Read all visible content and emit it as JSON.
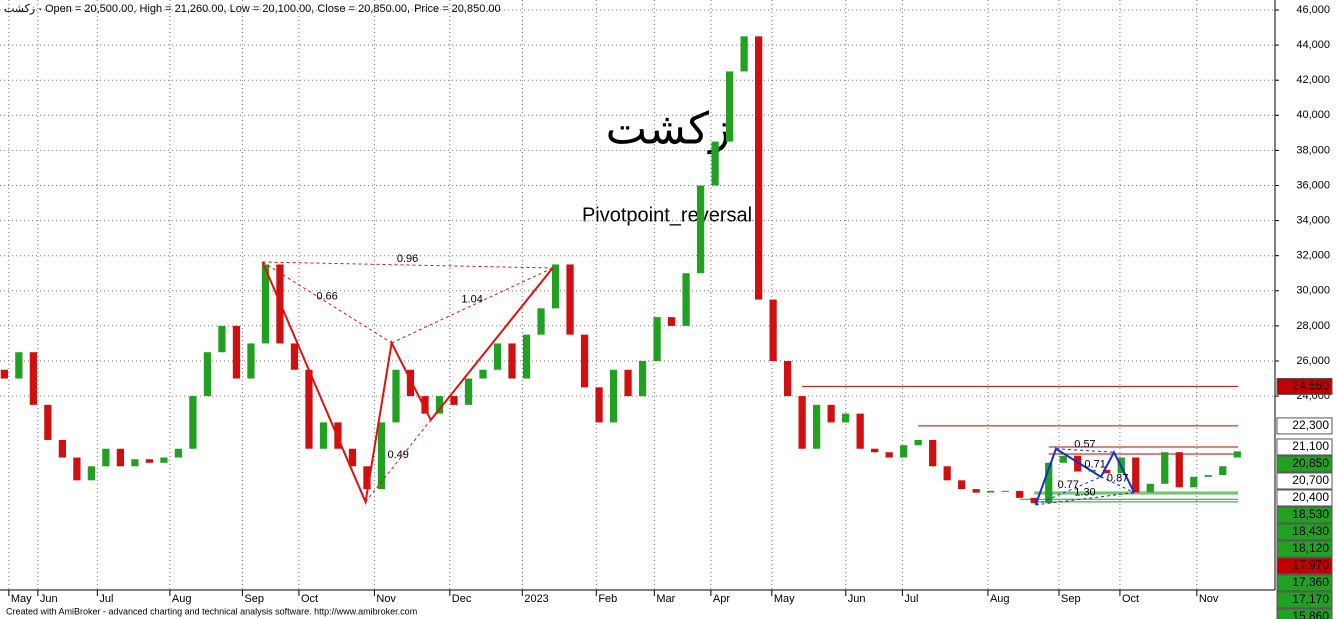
{
  "chart_data": {
    "type": "candlestick",
    "title": "زکشت - Open = 20,500.00, High = 21,260.00, Low = 20,100.00, Close = 20,850.00,",
    "price_label": "Price = 20,850.00",
    "watermark": "زکشت",
    "study_label": "Pivotpoint_reversal",
    "footer": "Created with AmiBroker - advanced charting and technical analysis software. http://www.amibroker.com",
    "xlim": [
      -0.3,
      87.6
    ],
    "xticks": [
      {
        "value": 1,
        "label": "May"
      },
      {
        "value": 3,
        "label": "Jun"
      },
      {
        "value": 7.1,
        "label": "Jul"
      },
      {
        "value": 12.1,
        "label": "Aug"
      },
      {
        "value": 17.1,
        "label": "Sep"
      },
      {
        "value": 21,
        "label": "Oct"
      },
      {
        "value": 26.2,
        "label": "Nov"
      },
      {
        "value": 31.4,
        "label": "Dec"
      },
      {
        "value": 36.4,
        "label": "2023"
      },
      {
        "value": 41.5,
        "label": "Feb"
      },
      {
        "value": 45.5,
        "label": "Mar"
      },
      {
        "value": 49.4,
        "label": "Apr"
      },
      {
        "value": 53.6,
        "label": "May"
      },
      {
        "value": 58.7,
        "label": "Jun"
      },
      {
        "value": 62.6,
        "label": "Jul"
      },
      {
        "value": 68.5,
        "label": "Aug"
      },
      {
        "value": 73.4,
        "label": "Sep"
      },
      {
        "value": 77.6,
        "label": "Oct"
      },
      {
        "value": 82.9,
        "label": "Nov"
      }
    ],
    "ylim": [
      12950,
      46570
    ],
    "yticks": [
      {
        "value": 24000,
        "label": "24,000"
      },
      {
        "value": 26000,
        "label": "26,000"
      },
      {
        "value": 28000,
        "label": "28,000"
      },
      {
        "value": 30000,
        "label": "30,000"
      },
      {
        "value": 32000,
        "label": "32,000"
      },
      {
        "value": 34000,
        "label": "34,000"
      },
      {
        "value": 36000,
        "label": "36,000"
      },
      {
        "value": 38000,
        "label": "38,000"
      },
      {
        "value": 40000,
        "label": "40,000"
      },
      {
        "value": 42000,
        "label": "42,000"
      },
      {
        "value": 44000,
        "label": "44,000"
      },
      {
        "value": 46000,
        "label": "46,000"
      }
    ],
    "up_color": "#22a022",
    "down_color": "#d01010",
    "open": [
      25500,
      25000,
      26500,
      23500,
      21500,
      20500,
      19200,
      20000,
      21000,
      20000,
      20400,
      20200,
      20500,
      21000,
      24000,
      26500,
      28000,
      25000,
      27000,
      31500,
      27000,
      25500,
      21000,
      22500,
      21000,
      20000,
      18700,
      22500,
      25500,
      24000,
      23000,
      24000,
      23500,
      25000,
      25500,
      27000,
      25000,
      27500,
      29000,
      31500,
      27500,
      24500,
      22500,
      25500,
      24000,
      26000,
      28500,
      28000,
      31000,
      36000,
      38500,
      42500,
      44500,
      29500,
      26000,
      24000,
      21000,
      23500,
      22500,
      23000,
      21000,
      20800,
      20500,
      21200,
      21500,
      20000,
      19200,
      18700,
      18500,
      18600,
      18600,
      18200,
      17900,
      20200,
      20600,
      19700,
      19800,
      19600,
      20500,
      18500,
      19000,
      20800,
      18800,
      19400,
      19500,
      20500
    ],
    "close": [
      25000,
      26500,
      23500,
      21500,
      20500,
      19200,
      20000,
      21000,
      20000,
      20400,
      20200,
      20500,
      21000,
      24000,
      26500,
      28000,
      25000,
      27000,
      31500,
      27000,
      25500,
      21000,
      22500,
      21000,
      20000,
      18700,
      22500,
      25500,
      24000,
      23000,
      24000,
      23500,
      25000,
      25500,
      27000,
      25000,
      27500,
      29000,
      31500,
      27500,
      24500,
      22500,
      25500,
      24000,
      26000,
      28500,
      28000,
      31000,
      36000,
      38500,
      42500,
      44500,
      29500,
      26000,
      24000,
      21000,
      23500,
      22500,
      23000,
      21000,
      20800,
      20500,
      21200,
      21500,
      20000,
      19200,
      18700,
      18500,
      18600,
      18600,
      18200,
      17900,
      20200,
      20600,
      19700,
      19800,
      19600,
      20500,
      18500,
      19000,
      20800,
      18800,
      19400,
      19500,
      20000,
      20850
    ],
    "patterns": [
      {
        "color": "#e01010",
        "x": [
          17.8,
          24.9,
          26.7,
          29.4,
          37.8
        ],
        "y": [
          31640,
          17970,
          27030,
          22640,
          31300
        ],
        "ratios": [
          "0.66",
          "1.04",
          "0.96",
          "0.49"
        ]
      },
      {
        "color": "#1030d0",
        "x": [
          71.1,
          72.5,
          75.6,
          76.5,
          77.9
        ],
        "y": [
          17800,
          21000,
          19400,
          20800,
          18500
        ],
        "ratios": [
          "0.77",
          "0.87",
          "1.30",
          "0.57",
          "0.71"
        ]
      }
    ],
    "levels": [
      {
        "value": 24550,
        "label": "24,550",
        "color": "#c00000",
        "box": "#c00000",
        "text": "#fff",
        "from": 55
      },
      {
        "value": 22300,
        "label": "22,300",
        "color": "#c00000",
        "box": "#fff",
        "text": "#c00000",
        "from": 63
      },
      {
        "value": 21100,
        "label": "21,100",
        "color": "#c00000",
        "box": "#fff",
        "text": "#c00000",
        "from": 72
      },
      {
        "value": 20850,
        "label": "20,850",
        "color": "#22a022",
        "box": "#22a022",
        "text": "#fff"
      },
      {
        "value": 20700,
        "label": "20,700",
        "color": "#c00000",
        "box": "#fff",
        "text": "#c00000",
        "from": 72
      },
      {
        "value": 20400,
        "label": "20,400",
        "color": "#c00000",
        "box": "#fff",
        "text": "#c00000"
      },
      {
        "value": 18530,
        "label": "18,530",
        "color": "#22a022",
        "box": "#22a022",
        "text": "#fff",
        "from": 71
      },
      {
        "value": 18430,
        "label": "18,430",
        "color": "#22a022",
        "box": "#22a022",
        "text": "#fff",
        "from": 71
      },
      {
        "value": 18120,
        "label": "18,120",
        "color": "#22a022",
        "box": "#22a022",
        "text": "#fff",
        "from": 70
      },
      {
        "value": 17970,
        "label": "17,970",
        "color": "#22a022",
        "box": "#c00000",
        "text": "#fff",
        "from": 71
      },
      {
        "value": 17360,
        "label": "17,360",
        "color": "#22a022",
        "box": "#22a022",
        "text": "#fff"
      },
      {
        "value": 17170,
        "label": "17,170",
        "color": "#22a022",
        "box": "#22a022",
        "text": "#fff"
      },
      {
        "value": 15860,
        "label": "15,860",
        "color": "#22a022",
        "box": "#22a022",
        "text": "#fff"
      }
    ]
  }
}
